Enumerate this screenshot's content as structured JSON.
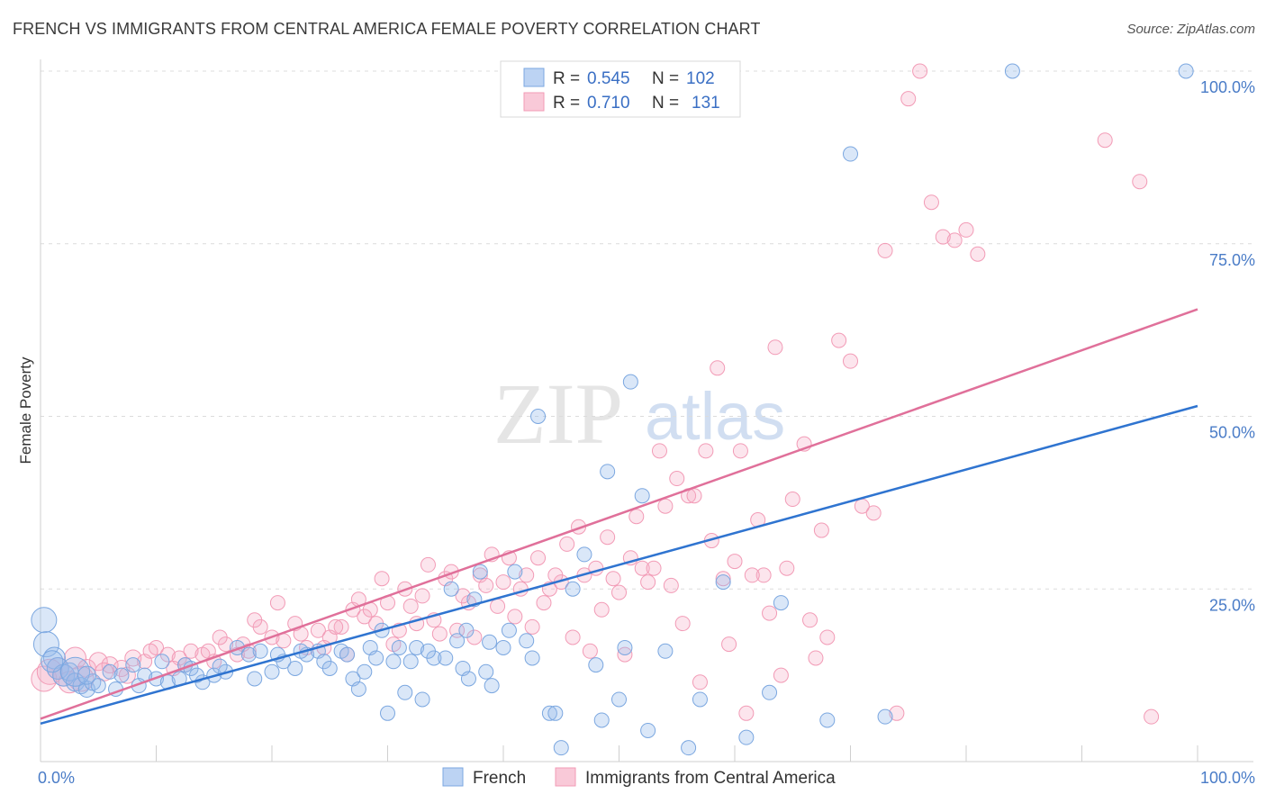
{
  "title": "FRENCH VS IMMIGRANTS FROM CENTRAL AMERICA FEMALE POVERTY CORRELATION CHART",
  "source": "Source: ZipAtlas.com",
  "watermark": {
    "zip": "ZIP",
    "atlas": "atlas"
  },
  "colors": {
    "french": "#7ba7e0",
    "french_line": "#2f74d0",
    "immigrants": "#f29bb6",
    "immigrants_line": "#e0709a",
    "tick_text": "#4a7cc7"
  },
  "legend": {
    "r_label": "R =",
    "n_label": "N =",
    "french_r": "0.545",
    "french_n": "102",
    "imm_r": "0.710",
    "imm_n": "131"
  },
  "chart_data": {
    "type": "scatter",
    "ylabel": "Female Poverty",
    "xlim": [
      0,
      100
    ],
    "ylim": [
      0,
      100
    ],
    "x_tick_labels": [
      "0.0%",
      "100.0%"
    ],
    "y_ticks": [
      25,
      50,
      75,
      100
    ],
    "y_tick_labels": [
      "25.0%",
      "50.0%",
      "75.0%",
      "100.0%"
    ],
    "grid": "horizontal dashed",
    "legend_position": "top-center",
    "series": [
      {
        "name": "French",
        "trend": [
          [
            0,
            5.5
          ],
          [
            100,
            51.5
          ]
        ],
        "points": [
          [
            0.3,
            20.5,
            14
          ],
          [
            0.5,
            17,
            14
          ],
          [
            1.2,
            15,
            12
          ],
          [
            1.5,
            13.5,
            12
          ],
          [
            2,
            12.5,
            12
          ],
          [
            2.5,
            13,
            10
          ],
          [
            3,
            11.5,
            10
          ],
          [
            3.5,
            11,
            9
          ],
          [
            4,
            10.5,
            9
          ],
          [
            4.5,
            11.5,
            9
          ],
          [
            5,
            11,
            8
          ],
          [
            6,
            13,
            8
          ],
          [
            7,
            12.5,
            8
          ],
          [
            8,
            14,
            8
          ],
          [
            9,
            12.5,
            8
          ],
          [
            10,
            12,
            8
          ],
          [
            11,
            11.5,
            8
          ],
          [
            12,
            12,
            8
          ],
          [
            12.5,
            14,
            8
          ],
          [
            13,
            13.5,
            8
          ],
          [
            14,
            11.5,
            8
          ],
          [
            15,
            12.5,
            8
          ],
          [
            16,
            13,
            8
          ],
          [
            17,
            16.5,
            8
          ],
          [
            18,
            15.5,
            8
          ],
          [
            19,
            16,
            8
          ],
          [
            20,
            13,
            8
          ],
          [
            21,
            14.5,
            8
          ],
          [
            22,
            13.5,
            8
          ],
          [
            23,
            15.5,
            8
          ],
          [
            24,
            16,
            8
          ],
          [
            24.5,
            14.5,
            8
          ],
          [
            25,
            13.5,
            8
          ],
          [
            26,
            16,
            8
          ],
          [
            27,
            12,
            8
          ],
          [
            27.5,
            10.5,
            8
          ],
          [
            28,
            13,
            8
          ],
          [
            28.5,
            16.5,
            8
          ],
          [
            29,
            15,
            8
          ],
          [
            30,
            7,
            8
          ],
          [
            30.5,
            14.5,
            8
          ],
          [
            31,
            16.5,
            8
          ],
          [
            32,
            14.5,
            8
          ],
          [
            32.5,
            16.5,
            8
          ],
          [
            33,
            9,
            8
          ],
          [
            34,
            15,
            8
          ],
          [
            35,
            15,
            8
          ],
          [
            35.5,
            25,
            8
          ],
          [
            36,
            17.5,
            8
          ],
          [
            36.5,
            13.5,
            8
          ],
          [
            37,
            12,
            8
          ],
          [
            37.5,
            23.5,
            8
          ],
          [
            38,
            27.5,
            8
          ],
          [
            38.5,
            13,
            8
          ],
          [
            39,
            11,
            8
          ],
          [
            40,
            16.5,
            8
          ],
          [
            40.5,
            19,
            8
          ],
          [
            41,
            27.5,
            8
          ],
          [
            42,
            17.5,
            8
          ],
          [
            43,
            50,
            8
          ],
          [
            44,
            7,
            8
          ],
          [
            45,
            2,
            8
          ],
          [
            46,
            25,
            8
          ],
          [
            47,
            30,
            8
          ],
          [
            48,
            14,
            8
          ],
          [
            49,
            42,
            8
          ],
          [
            50,
            9,
            8
          ],
          [
            50.5,
            16.5,
            8
          ],
          [
            51,
            55,
            8
          ],
          [
            52,
            38.5,
            8
          ],
          [
            54,
            16,
            8
          ],
          [
            56,
            2,
            8
          ],
          [
            57,
            9,
            8
          ],
          [
            59,
            26,
            8
          ],
          [
            61,
            3.5,
            8
          ],
          [
            63,
            10,
            8
          ],
          [
            64,
            23,
            8
          ],
          [
            68,
            6,
            8
          ],
          [
            70,
            88,
            8
          ],
          [
            73,
            6.5,
            8
          ],
          [
            84,
            100,
            8
          ],
          [
            99,
            100,
            8
          ],
          [
            3,
            13,
            16
          ],
          [
            1,
            14.5,
            12
          ],
          [
            4,
            12.5,
            10
          ],
          [
            6.5,
            10.5,
            8
          ],
          [
            8.5,
            11,
            8
          ],
          [
            18.5,
            12,
            8
          ],
          [
            26.5,
            15.5,
            8
          ],
          [
            33.5,
            16,
            8
          ],
          [
            38.8,
            17.3,
            8
          ],
          [
            13.5,
            12.5,
            8
          ],
          [
            15.5,
            13.8,
            8
          ],
          [
            22.5,
            16,
            8
          ],
          [
            29.5,
            19,
            8
          ],
          [
            36.8,
            19,
            8
          ],
          [
            42.5,
            15,
            8
          ],
          [
            48.5,
            6,
            8
          ],
          [
            52.5,
            4.5,
            8
          ],
          [
            44.5,
            7,
            8
          ],
          [
            10.5,
            14.5,
            8
          ],
          [
            20.5,
            15.5,
            8
          ],
          [
            31.5,
            10,
            8
          ]
        ]
      },
      {
        "name": "Immigrants from Central America",
        "trend": [
          [
            0,
            6.2
          ],
          [
            100,
            65.5
          ]
        ],
        "points": [
          [
            0.3,
            12,
            14
          ],
          [
            0.8,
            13,
            14
          ],
          [
            1.5,
            13.5,
            12
          ],
          [
            2,
            12.5,
            12
          ],
          [
            3,
            15,
            12
          ],
          [
            4,
            13.5,
            10
          ],
          [
            5,
            14.5,
            10
          ],
          [
            6,
            14,
            9
          ],
          [
            7,
            13.5,
            9
          ],
          [
            8,
            15,
            9
          ],
          [
            9,
            14.5,
            8
          ],
          [
            10,
            16.5,
            8
          ],
          [
            11,
            15.5,
            8
          ],
          [
            12,
            15,
            8
          ],
          [
            13,
            16,
            8
          ],
          [
            14,
            15.5,
            8
          ],
          [
            15,
            14.5,
            8
          ],
          [
            16,
            17,
            8
          ],
          [
            17,
            15.5,
            8
          ],
          [
            18,
            16,
            8
          ],
          [
            19,
            19.5,
            8
          ],
          [
            20,
            18,
            8
          ],
          [
            21,
            17.5,
            8
          ],
          [
            22,
            20,
            8
          ],
          [
            23,
            16.5,
            8
          ],
          [
            24,
            19,
            8
          ],
          [
            25,
            18,
            8
          ],
          [
            26,
            19.5,
            8
          ],
          [
            27,
            22,
            8
          ],
          [
            28,
            21,
            8
          ],
          [
            29,
            20,
            8
          ],
          [
            30,
            23,
            8
          ],
          [
            31,
            19,
            8
          ],
          [
            32,
            22.5,
            8
          ],
          [
            33,
            24,
            8
          ],
          [
            34,
            20.5,
            8
          ],
          [
            35,
            26.5,
            8
          ],
          [
            36,
            19,
            8
          ],
          [
            37,
            23,
            8
          ],
          [
            38,
            27,
            8
          ],
          [
            39,
            30,
            8
          ],
          [
            40,
            26,
            8
          ],
          [
            41,
            21,
            8
          ],
          [
            42,
            27,
            8
          ],
          [
            43,
            29.5,
            8
          ],
          [
            44,
            25,
            8
          ],
          [
            45,
            26,
            8
          ],
          [
            46,
            18,
            8
          ],
          [
            47,
            27,
            8
          ],
          [
            48,
            28,
            8
          ],
          [
            49,
            32.5,
            8
          ],
          [
            50,
            24.5,
            8
          ],
          [
            51,
            29.5,
            8
          ],
          [
            52,
            28,
            8
          ],
          [
            53,
            28,
            8
          ],
          [
            54,
            37,
            8
          ],
          [
            55,
            41,
            8
          ],
          [
            56,
            38.5,
            8
          ],
          [
            57,
            11.5,
            8
          ],
          [
            58,
            32,
            8
          ],
          [
            59,
            26.5,
            8
          ],
          [
            60,
            29,
            8
          ],
          [
            61,
            7,
            8
          ],
          [
            62,
            35,
            8
          ],
          [
            63,
            21.5,
            8
          ],
          [
            64,
            12.5,
            8
          ],
          [
            65,
            38,
            8
          ],
          [
            66,
            46,
            8
          ],
          [
            67,
            15,
            8
          ],
          [
            68,
            18,
            8
          ],
          [
            69,
            61,
            8
          ],
          [
            70,
            58,
            8
          ],
          [
            71,
            37,
            8
          ],
          [
            72,
            36,
            8
          ],
          [
            73,
            74,
            8
          ],
          [
            74,
            7,
            8
          ],
          [
            75,
            96,
            8
          ],
          [
            76,
            100,
            8
          ],
          [
            77,
            81,
            8
          ],
          [
            78,
            76,
            8
          ],
          [
            79,
            75.5,
            8
          ],
          [
            80,
            77,
            8
          ],
          [
            81,
            73.5,
            8
          ],
          [
            92,
            90,
            8
          ],
          [
            95,
            84,
            8
          ],
          [
            96,
            6.5,
            8
          ],
          [
            3.5,
            12,
            14
          ],
          [
            2.5,
            11.5,
            12
          ],
          [
            5.5,
            13,
            10
          ],
          [
            7.5,
            12.5,
            9
          ],
          [
            11.5,
            13.5,
            8
          ],
          [
            14.5,
            16,
            8
          ],
          [
            17.5,
            17,
            8
          ],
          [
            22.5,
            18.5,
            8
          ],
          [
            25.5,
            19.5,
            8
          ],
          [
            28.5,
            22,
            8
          ],
          [
            31.5,
            25,
            8
          ],
          [
            33.5,
            28.5,
            8
          ],
          [
            36.5,
            24,
            8
          ],
          [
            39.5,
            22.5,
            8
          ],
          [
            41.5,
            25,
            8
          ],
          [
            44.5,
            27,
            8
          ],
          [
            46.5,
            34,
            8
          ],
          [
            48.5,
            22,
            8
          ],
          [
            50.5,
            15.5,
            8
          ],
          [
            52.5,
            26,
            8
          ],
          [
            55.5,
            20,
            8
          ],
          [
            57.5,
            45,
            8
          ],
          [
            60.5,
            45,
            8
          ],
          [
            62.5,
            27,
            8
          ],
          [
            66.5,
            20.5,
            8
          ],
          [
            20.5,
            23,
            8
          ],
          [
            26.5,
            15.5,
            8
          ],
          [
            30.5,
            17,
            8
          ],
          [
            34.5,
            18.5,
            8
          ],
          [
            37.5,
            18,
            8
          ],
          [
            42.5,
            19.5,
            8
          ],
          [
            47.5,
            16,
            8
          ],
          [
            53.5,
            45,
            8
          ],
          [
            58.5,
            57,
            8
          ],
          [
            63.5,
            60,
            8
          ],
          [
            9.5,
            16,
            8
          ],
          [
            12.5,
            14,
            8
          ],
          [
            15.5,
            18,
            8
          ],
          [
            18.5,
            20.5,
            8
          ],
          [
            24.5,
            16.5,
            8
          ],
          [
            27.5,
            23.5,
            8
          ],
          [
            29.5,
            26.5,
            8
          ],
          [
            32.5,
            20,
            8
          ],
          [
            35.5,
            27.5,
            8
          ],
          [
            38.5,
            25.5,
            8
          ],
          [
            40.5,
            29.5,
            8
          ],
          [
            43.5,
            23,
            8
          ],
          [
            45.5,
            31.5,
            8
          ],
          [
            49.5,
            26.5,
            8
          ],
          [
            51.5,
            35.5,
            8
          ],
          [
            54.5,
            25.5,
            8
          ],
          [
            56.5,
            38.5,
            8
          ],
          [
            59.5,
            17,
            8
          ],
          [
            61.5,
            27,
            8
          ],
          [
            64.5,
            28,
            8
          ],
          [
            67.5,
            33.5,
            8
          ]
        ]
      }
    ]
  },
  "bottom_legend": {
    "french": "French",
    "immigrants": "Immigrants from Central America"
  }
}
